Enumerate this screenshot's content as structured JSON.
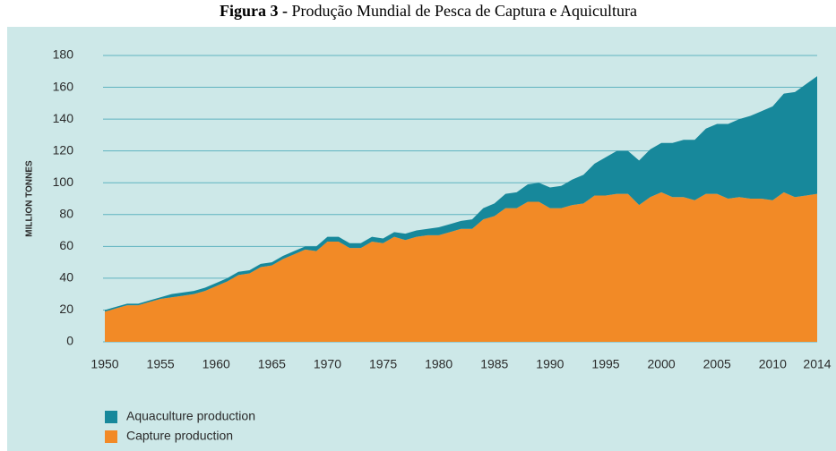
{
  "chart_data": {
    "type": "stacked_area",
    "figure_label": "Figura 3 -",
    "title": "Produção Mundial de Pesca de Captura e Aquicultura",
    "ylabel": "MILLION TONNES",
    "x": [
      1950,
      1951,
      1952,
      1953,
      1954,
      1955,
      1956,
      1957,
      1958,
      1959,
      1960,
      1961,
      1962,
      1963,
      1964,
      1965,
      1966,
      1967,
      1968,
      1969,
      1970,
      1971,
      1972,
      1973,
      1974,
      1975,
      1976,
      1977,
      1978,
      1979,
      1980,
      1981,
      1982,
      1983,
      1984,
      1985,
      1986,
      1987,
      1988,
      1989,
      1990,
      1991,
      1992,
      1993,
      1994,
      1995,
      1996,
      1997,
      1998,
      1999,
      2000,
      2001,
      2002,
      2003,
      2004,
      2005,
      2006,
      2007,
      2008,
      2009,
      2010,
      2011,
      2012,
      2013,
      2014
    ],
    "series": [
      {
        "name": "Capture production",
        "color": "#f28a26",
        "values": [
          19,
          21,
          23,
          23,
          25,
          27,
          28,
          29,
          30,
          32,
          35,
          38,
          42,
          43,
          47,
          48,
          52,
          55,
          58,
          57,
          63,
          63,
          59,
          59,
          63,
          62,
          66,
          64,
          66,
          67,
          67,
          69,
          71,
          71,
          77,
          79,
          84,
          84,
          88,
          88,
          84,
          84,
          86,
          87,
          92,
          92,
          93,
          93,
          86,
          91,
          94,
          91,
          91,
          89,
          93,
          93,
          90,
          91,
          90,
          90,
          89,
          94,
          91,
          92,
          93
        ]
      },
      {
        "name": "Aquaculture production",
        "color": "#17889b",
        "values": [
          1,
          1,
          1,
          1,
          1,
          1,
          2,
          2,
          2,
          2,
          2,
          2,
          2,
          2,
          2,
          2,
          2,
          2,
          2,
          3,
          3,
          3,
          3,
          3,
          3,
          3,
          3,
          4,
          4,
          4,
          5,
          5,
          5,
          6,
          7,
          8,
          9,
          10,
          11,
          12,
          13,
          14,
          16,
          18,
          20,
          24,
          27,
          27,
          28,
          30,
          31,
          34,
          36,
          38,
          41,
          44,
          47,
          49,
          52,
          55,
          59,
          62,
          66,
          70,
          74
        ]
      }
    ],
    "legend_order": [
      1,
      0
    ],
    "xlim": [
      1950,
      2014
    ],
    "xticks": [
      1950,
      1955,
      1960,
      1965,
      1970,
      1975,
      1980,
      1985,
      1990,
      1995,
      2000,
      2005,
      2010,
      2014
    ],
    "ylim": [
      0,
      180
    ],
    "yticks": [
      0,
      20,
      40,
      60,
      80,
      100,
      120,
      140,
      160,
      180
    ],
    "grid": true
  }
}
